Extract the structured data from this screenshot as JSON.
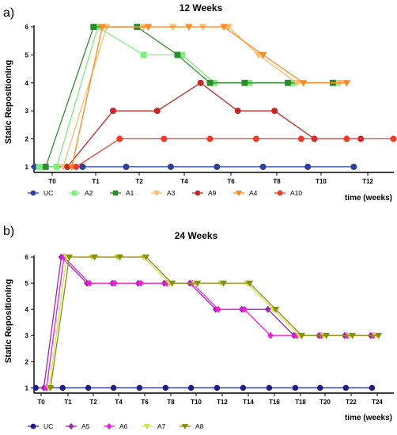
{
  "chart_data": [
    {
      "type": "line",
      "panel_label": "a)",
      "title": "12 Weeks",
      "ylabel": "Static Repositioning",
      "xlabel": "time (weeks)",
      "ylim": [
        0.8,
        6
      ],
      "yticks": [
        1,
        2,
        3,
        4,
        5,
        6
      ],
      "xlim": [
        -0.15,
        7.75
      ],
      "x_tick_labels": [
        "T0",
        "T1",
        "T2",
        "T4",
        "T6",
        "T8",
        "T10",
        "T12"
      ],
      "grid": false,
      "legend_position": "bottom",
      "series": [
        {
          "name": "UC",
          "color": "#2e3f9e",
          "marker": "circle",
          "points": [
            [
              -0.4,
              1
            ],
            [
              0.7,
              1
            ],
            [
              1.7,
              1
            ],
            [
              2.7,
              1
            ],
            [
              3.7,
              1
            ],
            [
              4.7,
              1
            ],
            [
              5.7,
              1
            ],
            [
              6.7,
              1
            ]
          ]
        },
        {
          "name": "A2",
          "color": "#7cf07a",
          "marker": "square",
          "points": [
            [
              -0.3,
              1
            ],
            [
              0.1,
              1
            ],
            [
              1.05,
              6
            ],
            [
              2.1,
              5
            ],
            [
              2.95,
              5
            ],
            [
              3.65,
              4
            ],
            [
              4.4,
              4
            ],
            [
              5.35,
              4
            ],
            [
              6.35,
              4
            ]
          ]
        },
        {
          "name": "A1",
          "color": "#2e8b2e",
          "marker": "square",
          "points": [
            [
              -0.15,
              1
            ],
            [
              0.95,
              6
            ],
            [
              1.95,
              6
            ],
            [
              2.85,
              5
            ],
            [
              3.55,
              4
            ],
            [
              4.3,
              4
            ],
            [
              5.25,
              4
            ],
            [
              6.25,
              4
            ]
          ]
        },
        {
          "name": "A3",
          "color": "#ffbb6e",
          "marker": "triangle-down",
          "points": [
            [
              0.25,
              1
            ],
            [
              1.25,
              6
            ],
            [
              2.1,
              6
            ],
            [
              2.75,
              6
            ],
            [
              3.4,
              6
            ],
            [
              3.95,
              6
            ],
            [
              4.6,
              5
            ],
            [
              5.45,
              4
            ],
            [
              6.4,
              4
            ]
          ]
        },
        {
          "name": "A9",
          "color": "#c62828",
          "marker": "circle",
          "points": [
            [
              0.35,
              1
            ],
            [
              1.4,
              3
            ],
            [
              2.4,
              3
            ],
            [
              3.35,
              4
            ],
            [
              4.15,
              3
            ],
            [
              4.95,
              3
            ],
            [
              5.85,
              2
            ],
            [
              6.85,
              2
            ]
          ]
        },
        {
          "name": "A4",
          "color": "#ff8a1e",
          "marker": "triangle-down",
          "points": [
            [
              0.45,
              1
            ],
            [
              1.15,
              6
            ],
            [
              2.2,
              6
            ],
            [
              3.1,
              6
            ],
            [
              3.85,
              6
            ],
            [
              4.7,
              5
            ],
            [
              5.6,
              4
            ],
            [
              6.55,
              4
            ]
          ]
        },
        {
          "name": "A10",
          "color": "#f03a2c",
          "marker": "circle",
          "points": [
            [
              0.55,
              1
            ],
            [
              1.55,
              2
            ],
            [
              2.55,
              2
            ],
            [
              3.55,
              2
            ],
            [
              4.55,
              2
            ],
            [
              5.55,
              2
            ],
            [
              6.55,
              2
            ],
            [
              7.55,
              2
            ]
          ]
        }
      ]
    },
    {
      "type": "line",
      "panel_label": "b)",
      "title": "24 Weeks",
      "ylabel": "Static Repositioning",
      "xlabel": "time (weeks)",
      "ylim": [
        0.8,
        6
      ],
      "yticks": [
        1,
        2,
        3,
        4,
        5,
        6
      ],
      "xlim": [
        -0.35,
        13.35
      ],
      "x_tick_labels": [
        "T0",
        "T1",
        "T2",
        "T4",
        "T6",
        "T8",
        "T10",
        "T12",
        "T14",
        "T16",
        "T18",
        "T20",
        "T22",
        "T24"
      ],
      "grid": false,
      "legend_position": "bottom",
      "series": [
        {
          "name": "UC",
          "color": "#1c1c8a",
          "marker": "circle",
          "points": [
            [
              -0.2,
              1
            ],
            [
              0.8,
              1
            ],
            [
              1.8,
              1
            ],
            [
              2.8,
              1
            ],
            [
              3.8,
              1
            ],
            [
              4.8,
              1
            ],
            [
              5.8,
              1
            ],
            [
              6.8,
              1
            ],
            [
              7.8,
              1
            ],
            [
              8.8,
              1
            ],
            [
              9.8,
              1
            ],
            [
              10.8,
              1
            ],
            [
              11.8,
              1
            ],
            [
              12.8,
              1
            ]
          ]
        },
        {
          "name": "A5",
          "color": "#9c27b0",
          "marker": "diamond",
          "points": [
            [
              0.1,
              1
            ],
            [
              0.75,
              6
            ],
            [
              1.75,
              5
            ],
            [
              2.75,
              5
            ],
            [
              3.75,
              5
            ],
            [
              4.75,
              5
            ],
            [
              5.75,
              5
            ],
            [
              6.75,
              4
            ],
            [
              7.75,
              4
            ],
            [
              8.75,
              4
            ],
            [
              9.75,
              3
            ],
            [
              10.75,
              3
            ],
            [
              11.75,
              3
            ],
            [
              12.75,
              3
            ]
          ]
        },
        {
          "name": "A6",
          "color": "#f020d8",
          "marker": "diamond",
          "points": [
            [
              0.2,
              1
            ],
            [
              0.85,
              6
            ],
            [
              1.85,
              5
            ],
            [
              2.85,
              5
            ],
            [
              3.85,
              5
            ],
            [
              4.85,
              5
            ],
            [
              5.85,
              5
            ],
            [
              6.85,
              4
            ],
            [
              7.85,
              4
            ],
            [
              8.85,
              3
            ],
            [
              9.85,
              3
            ],
            [
              10.85,
              3
            ],
            [
              11.85,
              3
            ],
            [
              12.85,
              3
            ]
          ]
        },
        {
          "name": "A7",
          "color": "#d4e157",
          "marker": "triangle-down",
          "points": [
            [
              0.3,
              1
            ],
            [
              0.95,
              6
            ],
            [
              1.95,
              6
            ],
            [
              2.95,
              6
            ],
            [
              3.95,
              6
            ],
            [
              4.95,
              5
            ],
            [
              5.95,
              5
            ],
            [
              6.95,
              5
            ],
            [
              7.95,
              5
            ],
            [
              8.95,
              4
            ],
            [
              9.95,
              3
            ],
            [
              10.95,
              3
            ],
            [
              11.95,
              3
            ],
            [
              12.95,
              3
            ]
          ]
        },
        {
          "name": "A8",
          "color": "#8d8d12",
          "marker": "triangle-down",
          "points": [
            [
              0.35,
              1
            ],
            [
              1.05,
              6
            ],
            [
              2.05,
              6
            ],
            [
              3.05,
              6
            ],
            [
              4.05,
              6
            ],
            [
              5.05,
              5
            ],
            [
              6.05,
              5
            ],
            [
              7.05,
              5
            ],
            [
              8.05,
              5
            ],
            [
              9.05,
              4
            ],
            [
              10.05,
              3
            ],
            [
              11.05,
              3
            ],
            [
              12.05,
              3
            ],
            [
              13.05,
              3
            ]
          ]
        }
      ]
    }
  ]
}
